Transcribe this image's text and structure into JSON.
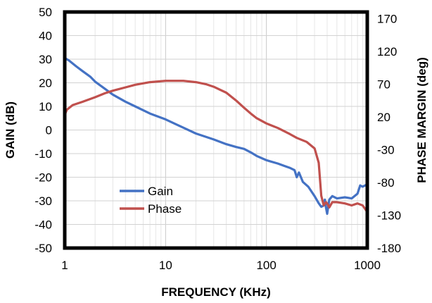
{
  "chart_data": {
    "type": "line",
    "xlabel": "FREQUENCY  (KHz)",
    "ylabel": "GAIN  (dB)",
    "y2label": "PHASE  MARGIN  (deg)",
    "x_scale": "log",
    "xlim": [
      1,
      1000
    ],
    "ylim": [
      -50,
      50
    ],
    "y2lim": [
      -180,
      180
    ],
    "x_ticks": [
      1,
      10,
      100,
      1000
    ],
    "x_tick_labels": [
      "1",
      "10",
      "100",
      "1000"
    ],
    "y_ticks": [
      -50,
      -40,
      -30,
      -20,
      -10,
      0,
      10,
      20,
      30,
      40,
      50
    ],
    "y_tick_labels": [
      "-50",
      "-40",
      "-30",
      "-20",
      "-10",
      "0",
      "10",
      "20",
      "30",
      "40",
      "50"
    ],
    "y2_ticks": [
      -180,
      -130,
      -80,
      -30,
      20,
      70,
      120,
      170
    ],
    "y2_tick_labels": [
      "-180",
      "-130",
      "-80",
      "-30",
      "20",
      "70",
      "120",
      "170"
    ],
    "grid": true,
    "legend": "lower-left",
    "series": [
      {
        "name": "Gain",
        "axis": "left",
        "color": "#4472c4",
        "x": [
          1,
          1.1,
          1.3,
          1.5,
          1.8,
          2,
          2.5,
          3,
          4,
          5,
          7,
          10,
          15,
          20,
          30,
          40,
          50,
          60,
          70,
          80,
          100,
          130,
          150,
          170,
          190,
          200,
          210,
          230,
          260,
          300,
          330,
          350,
          370,
          380,
          390,
          400,
          420,
          450,
          500,
          600,
          700,
          800,
          850,
          900,
          950,
          1000
        ],
        "values": [
          30.5,
          29.5,
          27,
          25,
          22.5,
          20.5,
          17.5,
          15,
          12,
          10,
          7,
          4.5,
          1,
          -1.5,
          -4,
          -6,
          -7.2,
          -8,
          -9.5,
          -11,
          -12.8,
          -14.2,
          -15.2,
          -16,
          -17,
          -20,
          -18,
          -22,
          -24,
          -28,
          -31,
          -32.5,
          -32,
          -29.5,
          -33,
          -35.5,
          -29.5,
          -28,
          -29,
          -28.5,
          -29,
          -27,
          -23.5,
          -24,
          -23.5,
          -23
        ]
      },
      {
        "name": "Phase",
        "axis": "right",
        "color": "#c0504d",
        "x": [
          1,
          1.05,
          1.2,
          1.5,
          2,
          2.5,
          3,
          4,
          5,
          7,
          10,
          15,
          20,
          25,
          30,
          40,
          50,
          60,
          70,
          80,
          100,
          130,
          170,
          200,
          250,
          300,
          330,
          350,
          370,
          390,
          400,
          420,
          450,
          500,
          600,
          700,
          800,
          900,
          1000
        ],
        "values": [
          23,
          31,
          38,
          43,
          50,
          56,
          60,
          65,
          69,
          73,
          75,
          75,
          73,
          70,
          66,
          57,
          45,
          34,
          25,
          18,
          10,
          3,
          -6,
          -12,
          -18,
          -28,
          -50,
          -100,
          -115,
          -110,
          -112,
          -118,
          -110,
          -110,
          -112,
          -115,
          -112,
          -115,
          -125
        ]
      }
    ]
  }
}
